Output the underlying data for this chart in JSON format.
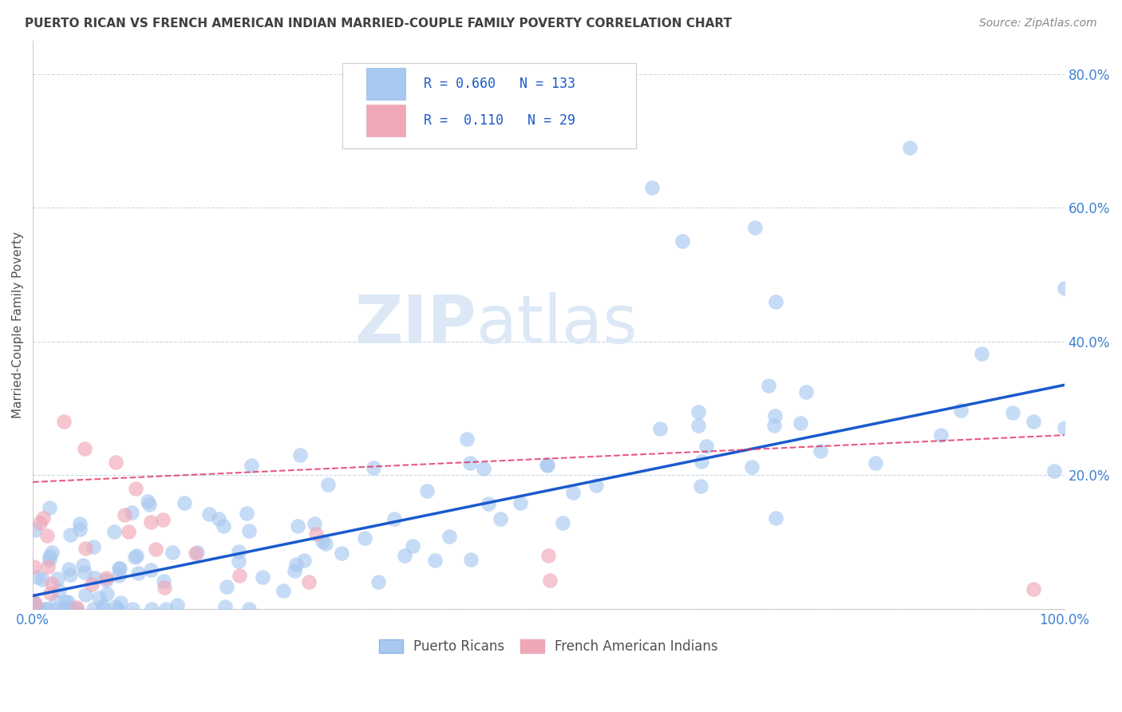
{
  "title": "PUERTO RICAN VS FRENCH AMERICAN INDIAN MARRIED-COUPLE FAMILY POVERTY CORRELATION CHART",
  "source": "Source: ZipAtlas.com",
  "ylabel": "Married-Couple Family Poverty",
  "xlim": [
    0,
    1.0
  ],
  "ylim": [
    0,
    0.85
  ],
  "blue_color": "#a8c8f0",
  "pink_color": "#f0a8b8",
  "blue_line_color": "#1a5acd",
  "pink_line_color": "#e03060",
  "title_color": "#404040",
  "axis_label_color": "#505050",
  "tick_color": "#4080d0",
  "watermark_color": "#dce8f5",
  "R_blue": 0.66,
  "N_blue": 133,
  "R_pink": 0.11,
  "N_pink": 29,
  "legend_label_blue": "Puerto Ricans",
  "legend_label_pink": "French American Indians",
  "background_color": "#ffffff",
  "grid_color": "#c8d8e8",
  "blue_line_intercept": 0.02,
  "blue_line_slope": 0.315,
  "pink_line_intercept": 0.19,
  "pink_line_slope": 0.07
}
